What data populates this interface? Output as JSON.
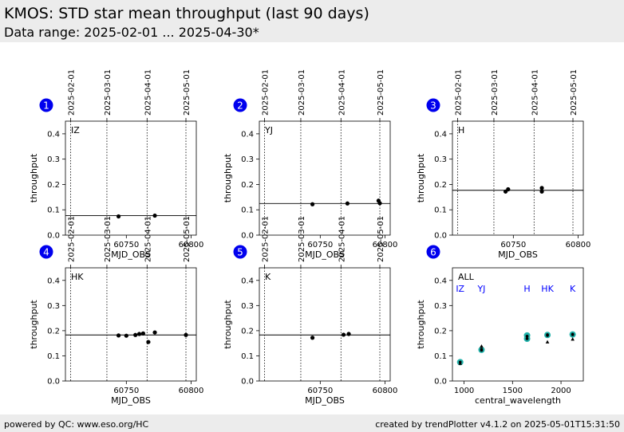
{
  "header": {
    "title": "KMOS: STD star mean throughput (last 90 days)",
    "subtitle": "Data range: 2025-02-01 ... 2025-04-30*"
  },
  "footer": {
    "left": "powered by QC: www.eso.org/HC",
    "right": "created by trendPlotter v4.1.2 on 2025-05-01T15:31:50"
  },
  "chart_data": [
    {
      "type": "scatter",
      "panel": "1",
      "label": "IZ",
      "xlabel": "MJD_OBS",
      "ylabel": "throughput",
      "xlim": [
        60703,
        60804
      ],
      "ylim": [
        0,
        0.45
      ],
      "xticks": [
        60750,
        60800
      ],
      "yticks": [
        0.0,
        0.1,
        0.2,
        0.3,
        0.4
      ],
      "date_ticks": [
        {
          "label": "2025-02-01",
          "mjd": 60707
        },
        {
          "label": "2025-03-01",
          "mjd": 60735
        },
        {
          "label": "2025-04-01",
          "mjd": 60766
        },
        {
          "label": "2025-05-01",
          "mjd": 60796
        }
      ],
      "mean": 0.077,
      "points": [
        [
          60744,
          0.074
        ],
        [
          60772,
          0.077
        ]
      ]
    },
    {
      "type": "scatter",
      "panel": "2",
      "label": "YJ",
      "xlabel": "MJD_OBS",
      "ylabel": "throughput",
      "xlim": [
        60703,
        60804
      ],
      "ylim": [
        0,
        0.45
      ],
      "xticks": [
        60750,
        60800
      ],
      "yticks": [
        0.0,
        0.1,
        0.2,
        0.3,
        0.4
      ],
      "date_ticks": [
        {
          "label": "2025-02-01",
          "mjd": 60707
        },
        {
          "label": "2025-03-01",
          "mjd": 60735
        },
        {
          "label": "2025-04-01",
          "mjd": 60766
        },
        {
          "label": "2025-05-01",
          "mjd": 60796
        }
      ],
      "mean": 0.125,
      "points": [
        [
          60744,
          0.122
        ],
        [
          60771,
          0.125
        ],
        [
          60795,
          0.136
        ],
        [
          60796,
          0.126
        ]
      ]
    },
    {
      "type": "scatter",
      "panel": "3",
      "label": "H",
      "xlabel": "MJD_OBS",
      "ylabel": "throughput",
      "xlim": [
        60703,
        60804
      ],
      "ylim": [
        0,
        0.45
      ],
      "xticks": [
        60750,
        60800
      ],
      "yticks": [
        0.0,
        0.1,
        0.2,
        0.3,
        0.4
      ],
      "date_ticks": [
        {
          "label": "2025-02-01",
          "mjd": 60707
        },
        {
          "label": "2025-03-01",
          "mjd": 60735
        },
        {
          "label": "2025-04-01",
          "mjd": 60766
        },
        {
          "label": "2025-05-01",
          "mjd": 60796
        }
      ],
      "mean": 0.177,
      "points": [
        [
          60744,
          0.172
        ],
        [
          60746,
          0.181
        ],
        [
          60772,
          0.186
        ],
        [
          60772,
          0.172
        ]
      ]
    },
    {
      "type": "scatter",
      "panel": "4",
      "label": "HK",
      "xlabel": "MJD_OBS",
      "ylabel": "throughput",
      "xlim": [
        60703,
        60804
      ],
      "ylim": [
        0,
        0.45
      ],
      "xticks": [
        60750,
        60800
      ],
      "yticks": [
        0.0,
        0.1,
        0.2,
        0.3,
        0.4
      ],
      "date_ticks": [
        {
          "label": "2025-02-01",
          "mjd": 60707
        },
        {
          "label": "2025-03-01",
          "mjd": 60735
        },
        {
          "label": "2025-04-01",
          "mjd": 60766
        },
        {
          "label": "2025-05-01",
          "mjd": 60796
        }
      ],
      "mean": 0.183,
      "points": [
        [
          60744,
          0.181
        ],
        [
          60750,
          0.18
        ],
        [
          60757,
          0.183
        ],
        [
          60760,
          0.187
        ],
        [
          60763,
          0.189
        ],
        [
          60767,
          0.155
        ],
        [
          60772,
          0.193
        ],
        [
          60796,
          0.183
        ]
      ]
    },
    {
      "type": "scatter",
      "panel": "5",
      "label": "K",
      "xlabel": "MJD_OBS",
      "ylabel": "throughput",
      "xlim": [
        60703,
        60804
      ],
      "ylim": [
        0,
        0.45
      ],
      "xticks": [
        60750,
        60800
      ],
      "yticks": [
        0.0,
        0.1,
        0.2,
        0.3,
        0.4
      ],
      "date_ticks": [
        {
          "label": "2025-02-01",
          "mjd": 60707
        },
        {
          "label": "2025-03-01",
          "mjd": 60735
        },
        {
          "label": "2025-04-01",
          "mjd": 60766
        },
        {
          "label": "2025-05-01",
          "mjd": 60796
        }
      ],
      "mean": 0.183,
      "points": [
        [
          60744,
          0.172
        ],
        [
          60768,
          0.184
        ],
        [
          60772,
          0.187
        ]
      ]
    },
    {
      "type": "scatter",
      "panel": "6",
      "label": "ALL",
      "xlabel": "central_wavelength",
      "ylabel": "throughput",
      "xlim": [
        880,
        2230
      ],
      "ylim": [
        0,
        0.45
      ],
      "xticks": [
        1000,
        1500,
        2000
      ],
      "yticks": [
        0.0,
        0.1,
        0.2,
        0.3,
        0.4
      ],
      "band_labels": [
        {
          "label": "IZ",
          "x": 960
        },
        {
          "label": "YJ",
          "x": 1180
        },
        {
          "label": "H",
          "x": 1650
        },
        {
          "label": "HK",
          "x": 1860
        },
        {
          "label": "K",
          "x": 2120
        }
      ],
      "band_label_color": "#0000ff",
      "mean_marker_color": "#20b2aa",
      "points": [
        [
          960,
          0.075
        ],
        [
          1180,
          0.122
        ],
        [
          1180,
          0.126
        ],
        [
          1650,
          0.178
        ],
        [
          1650,
          0.168
        ],
        [
          1860,
          0.184
        ],
        [
          1860,
          0.181
        ],
        [
          2120,
          0.186
        ],
        [
          2120,
          0.184
        ]
      ],
      "mean_points": [
        [
          960,
          0.075
        ],
        [
          1180,
          0.124
        ],
        [
          1650,
          0.181
        ],
        [
          1650,
          0.168
        ],
        [
          1860,
          0.183
        ],
        [
          2120,
          0.185
        ]
      ],
      "triangle_points": [
        [
          960,
          0.07
        ],
        [
          1180,
          0.138
        ],
        [
          1860,
          0.155
        ],
        [
          2120,
          0.166
        ]
      ]
    }
  ],
  "colors": {
    "marker_circle": "#0000ff",
    "band_text": "#0000ff",
    "mean_teal": "#20b2aa"
  }
}
